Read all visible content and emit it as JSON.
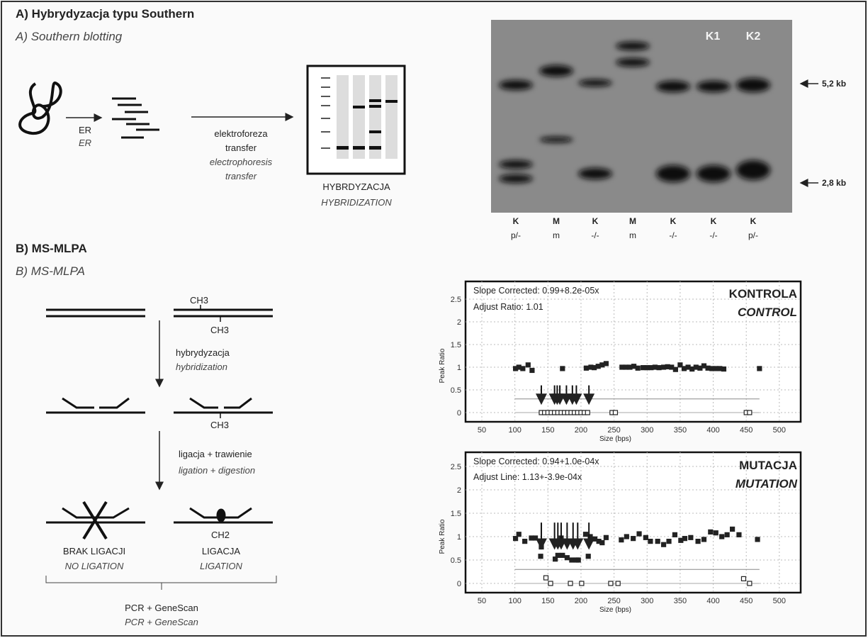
{
  "panel_a": {
    "title": "A) Hybrydyzacja  typu Southern",
    "subtitle": "A) Southern blotting",
    "er_label": "ER",
    "er_label_en": "ER",
    "step_lines": [
      "elektroforeza",
      "transfer",
      "electrophoresis",
      "transfer"
    ],
    "hybridization_label": "HYBRDYZACJA",
    "hybridization_label_en": "HYBRIDIZATION",
    "gel": {
      "sample_labels": [
        "K1",
        "K2"
      ],
      "size_markers": [
        "5,2 kb",
        "2,8 kb"
      ],
      "lanes": [
        {
          "top": "K",
          "bottom": "p/-"
        },
        {
          "top": "M",
          "bottom": "m"
        },
        {
          "top": "K",
          "bottom": "-/-"
        },
        {
          "top": "M",
          "bottom": "m"
        },
        {
          "top": "K",
          "bottom": "-/-"
        },
        {
          "top": "K",
          "bottom": "-/-"
        },
        {
          "top": "K",
          "bottom": "p/-"
        }
      ]
    }
  },
  "panel_b": {
    "title": "B) MS-MLPA",
    "subtitle": "B) MS-MLPA",
    "methyl_label": "CH3",
    "step1": "hybrydyzacja",
    "step1_en": "hybridization",
    "step2": "ligacja + trawienie",
    "step2_en": "ligation + digestion",
    "no_ligation": "BRAK LIGACJI",
    "no_ligation_en": "NO LIGATION",
    "ligation": "LIGACJA",
    "ligation_en": "LIGATION",
    "methyl_label_ligated": "CH2",
    "final": "PCR + GeneScan",
    "final_en": "PCR + GeneScan"
  },
  "chart_data": [
    {
      "type": "scatter",
      "title": "KONTROLA",
      "title_en": "CONTROL",
      "annotations": [
        "Slope Corrected: 0.99+8.2e-05x",
        "Adjust Ratio: 1.01"
      ],
      "xlabel": "Size (bps)",
      "ylabel": "Peak Ratio",
      "xlim": [
        25,
        545
      ],
      "ylim": [
        -0.15,
        2.7
      ],
      "xticks": [
        50,
        100,
        150,
        200,
        250,
        300,
        350,
        400,
        450,
        500
      ],
      "yticks": [
        0,
        0.5,
        1,
        1.5,
        2,
        2.5
      ],
      "grid": true,
      "reference_line": {
        "y": 0.3,
        "x": [
          100,
          470
        ]
      },
      "arrows_x": [
        140,
        160,
        164,
        168,
        178,
        187,
        193,
        212
      ],
      "arrow_y": [
        0.6,
        0.2
      ],
      "points": [
        [
          101,
          0.97
        ],
        [
          106,
          1.0
        ],
        [
          112,
          0.97
        ],
        [
          120,
          1.05
        ],
        [
          126,
          0.93
        ],
        [
          172,
          0.97
        ],
        [
          208,
          0.98
        ],
        [
          215,
          1.0
        ],
        [
          220,
          0.99
        ],
        [
          226,
          1.02
        ],
        [
          232,
          1.05
        ],
        [
          238,
          1.08
        ],
        [
          262,
          1.0
        ],
        [
          268,
          1.0
        ],
        [
          274,
          1.0
        ],
        [
          280,
          1.02
        ],
        [
          286,
          0.98
        ],
        [
          294,
          0.99
        ],
        [
          300,
          0.99
        ],
        [
          306,
          0.99
        ],
        [
          312,
          1.0
        ],
        [
          318,
          0.99
        ],
        [
          325,
          1.0
        ],
        [
          331,
          1.01
        ],
        [
          337,
          1.0
        ],
        [
          343,
          0.95
        ],
        [
          350,
          1.05
        ],
        [
          356,
          0.97
        ],
        [
          362,
          1.0
        ],
        [
          368,
          0.96
        ],
        [
          374,
          1.0
        ],
        [
          380,
          0.98
        ],
        [
          386,
          1.03
        ],
        [
          392,
          0.98
        ],
        [
          398,
          0.97
        ],
        [
          404,
          0.97
        ],
        [
          410,
          0.97
        ],
        [
          416,
          0.96
        ],
        [
          470,
          0.97
        ],
        [
          140,
          0
        ],
        [
          145,
          0
        ],
        [
          150,
          0
        ],
        [
          155,
          0
        ],
        [
          160,
          0
        ],
        [
          165,
          0
        ],
        [
          170,
          0
        ],
        [
          175,
          0
        ],
        [
          180,
          0
        ],
        [
          185,
          0
        ],
        [
          190,
          0
        ],
        [
          195,
          0
        ],
        [
          200,
          0
        ],
        [
          205,
          0
        ],
        [
          210,
          0
        ],
        [
          247,
          0
        ],
        [
          252,
          0
        ],
        [
          450,
          0
        ],
        [
          455,
          0
        ]
      ]
    },
    {
      "type": "scatter",
      "title": "MUTACJA",
      "title_en": "MUTATION",
      "annotations": [
        "Slope Corrected: 0.94+1.0e-04x",
        "Adjust Line: 1.13+-3.9e-04x"
      ],
      "xlabel": "Size (bps)",
      "ylabel": "Peak Ratio",
      "xlim": [
        25,
        545
      ],
      "ylim": [
        -0.15,
        2.7
      ],
      "xticks": [
        50,
        100,
        150,
        200,
        250,
        300,
        350,
        400,
        450,
        500
      ],
      "yticks": [
        0,
        0.5,
        1,
        1.5,
        2,
        2.5
      ],
      "grid": true,
      "reference_line": {
        "y": 0.3,
        "x": [
          100,
          470
        ]
      },
      "arrows_x": [
        140,
        160,
        165,
        170,
        179,
        188,
        195,
        212
      ],
      "arrow_y": [
        1.3,
        0.75
      ],
      "points": [
        [
          101,
          0.96
        ],
        [
          106,
          1.05
        ],
        [
          115,
          0.9
        ],
        [
          125,
          0.97
        ],
        [
          131,
          0.97
        ],
        [
          139,
          0.58
        ],
        [
          140,
          0.78
        ],
        [
          147,
          0.12
        ],
        [
          154,
          0
        ],
        [
          161,
          0.52
        ],
        [
          165,
          0.6
        ],
        [
          170,
          0.97
        ],
        [
          172,
          0.6
        ],
        [
          179,
          0.55
        ],
        [
          184,
          0
        ],
        [
          186,
          0.5
        ],
        [
          193,
          0.5
        ],
        [
          196,
          0.5
        ],
        [
          201,
          0
        ],
        [
          207,
          1.05
        ],
        [
          211,
          0.58
        ],
        [
          214,
          1.0
        ],
        [
          221,
          0.95
        ],
        [
          227,
          0.9
        ],
        [
          232,
          0.87
        ],
        [
          238,
          0.98
        ],
        [
          245,
          0
        ],
        [
          256,
          0
        ],
        [
          261,
          0.93
        ],
        [
          269,
          1.0
        ],
        [
          279,
          0.96
        ],
        [
          288,
          1.06
        ],
        [
          298,
          0.98
        ],
        [
          305,
          0.9
        ],
        [
          316,
          0.9
        ],
        [
          325,
          0.83
        ],
        [
          333,
          0.9
        ],
        [
          342,
          1.04
        ],
        [
          351,
          0.92
        ],
        [
          357,
          0.96
        ],
        [
          366,
          0.98
        ],
        [
          377,
          0.9
        ],
        [
          386,
          0.94
        ],
        [
          396,
          1.1
        ],
        [
          404,
          1.08
        ],
        [
          413,
          1.0
        ],
        [
          421,
          1.04
        ],
        [
          429,
          1.16
        ],
        [
          439,
          1.04
        ],
        [
          446,
          0.1
        ],
        [
          455,
          0
        ],
        [
          467,
          0.94
        ]
      ]
    }
  ]
}
